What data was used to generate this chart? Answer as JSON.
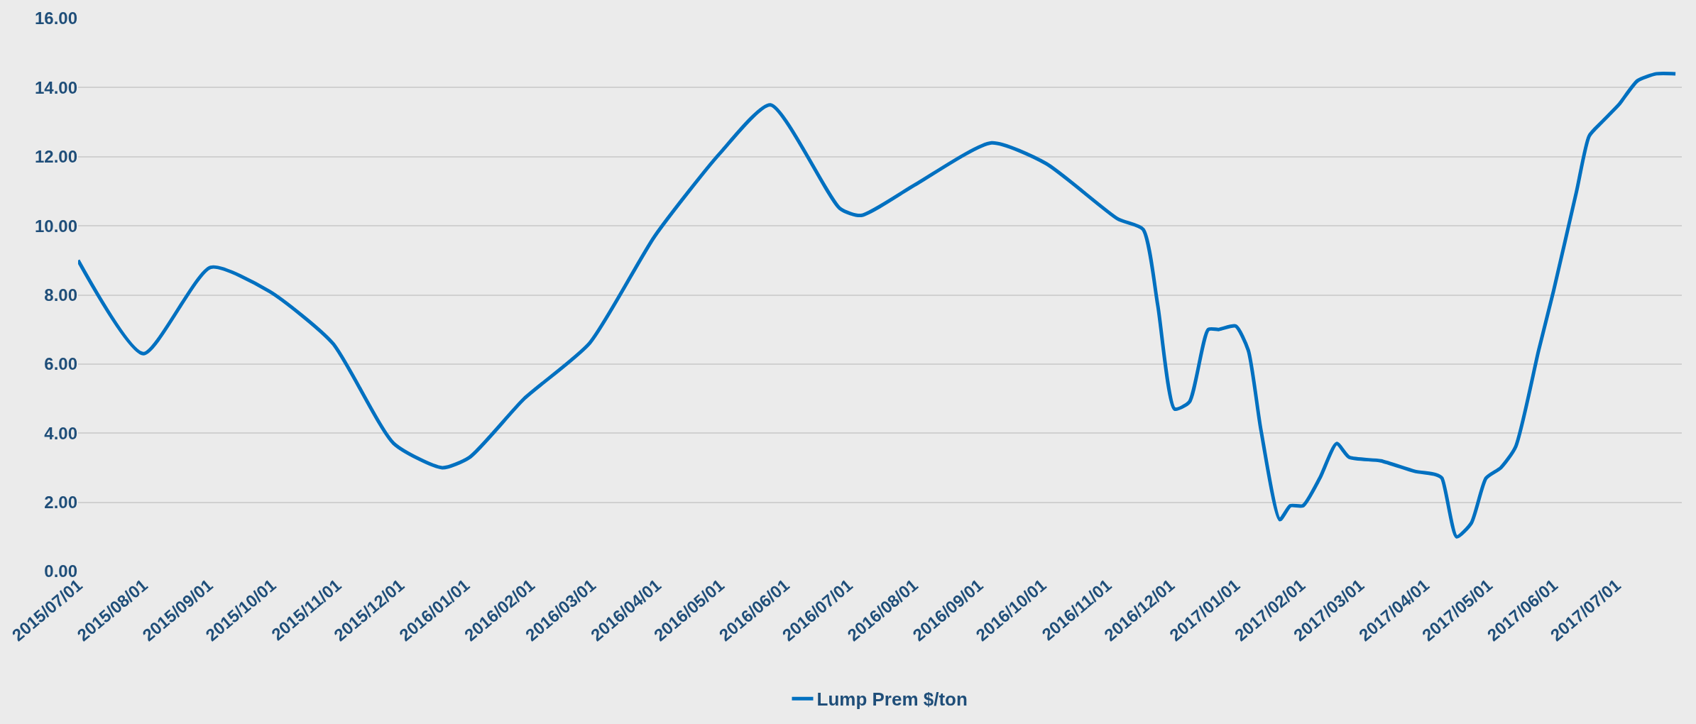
{
  "chart_data": {
    "type": "line",
    "x": [
      "2015-07-01",
      "2015-08-01",
      "2015-09-02",
      "2015-09-30",
      "2015-10-30",
      "2015-11-28",
      "2015-12-21",
      "2016-01-03",
      "2016-01-29",
      "2016-02-29",
      "2016-03-31",
      "2016-05-01",
      "2016-05-25",
      "2016-06-27",
      "2016-07-07",
      "2016-08-02",
      "2016-09-07",
      "2016-10-03",
      "2016-11-06",
      "2016-11-18",
      "2016-11-25",
      "2016-12-03",
      "2016-12-10",
      "2016-12-19",
      "2016-12-24",
      "2017-01-01",
      "2017-01-07",
      "2017-01-13",
      "2017-01-22",
      "2017-01-27",
      "2017-02-02",
      "2017-02-10",
      "2017-02-18",
      "2017-02-24",
      "2017-03-11",
      "2017-03-27",
      "2017-04-06",
      "2017-04-09",
      "2017-04-16",
      "2017-04-23",
      "2017-04-30",
      "2017-05-07",
      "2017-05-14",
      "2017-05-25",
      "2017-06-01",
      "2017-06-12",
      "2017-06-18",
      "2017-06-24",
      "2017-07-02",
      "2017-07-11",
      "2017-07-20",
      "2017-07-29"
    ],
    "series": [
      {
        "name": "Lump Prem $/ton",
        "color": "#0070c0",
        "values": [
          9.0,
          6.3,
          8.8,
          8.1,
          6.6,
          3.7,
          3.0,
          3.3,
          5.0,
          6.6,
          9.7,
          12.1,
          13.5,
          10.5,
          10.3,
          11.2,
          12.4,
          11.8,
          10.2,
          9.9,
          7.7,
          4.7,
          4.9,
          7.0,
          7.0,
          7.1,
          6.4,
          4.1,
          1.5,
          1.9,
          1.9,
          2.7,
          3.7,
          3.3,
          3.2,
          2.9,
          2.8,
          2.7,
          1.0,
          1.4,
          2.7,
          3.0,
          3.6,
          6.4,
          8.1,
          11.0,
          12.6,
          13.0,
          13.5,
          14.2,
          14.4,
          14.4
        ]
      }
    ],
    "xlim": [
      "2015-07-01",
      "2017-08-01"
    ],
    "xticks": [
      {
        "value": "2015-07-01",
        "label": "2015/07/01"
      },
      {
        "value": "2015-08-01",
        "label": "2015/08/01"
      },
      {
        "value": "2015-09-01",
        "label": "2015/09/01"
      },
      {
        "value": "2015-10-01",
        "label": "2015/10/01"
      },
      {
        "value": "2015-11-01",
        "label": "2015/11/01"
      },
      {
        "value": "2015-12-01",
        "label": "2015/12/01"
      },
      {
        "value": "2016-01-01",
        "label": "2016/01/01"
      },
      {
        "value": "2016-02-01",
        "label": "2016/02/01"
      },
      {
        "value": "2016-03-01",
        "label": "2016/03/01"
      },
      {
        "value": "2016-04-01",
        "label": "2016/04/01"
      },
      {
        "value": "2016-05-01",
        "label": "2016/05/01"
      },
      {
        "value": "2016-06-01",
        "label": "2016/06/01"
      },
      {
        "value": "2016-07-01",
        "label": "2016/07/01"
      },
      {
        "value": "2016-08-01",
        "label": "2016/08/01"
      },
      {
        "value": "2016-09-01",
        "label": "2016/09/01"
      },
      {
        "value": "2016-10-01",
        "label": "2016/10/01"
      },
      {
        "value": "2016-11-01",
        "label": "2016/11/01"
      },
      {
        "value": "2016-12-01",
        "label": "2016/12/01"
      },
      {
        "value": "2017-01-01",
        "label": "2017/01/01"
      },
      {
        "value": "2017-02-01",
        "label": "2017/02/01"
      },
      {
        "value": "2017-03-01",
        "label": "2017/03/01"
      },
      {
        "value": "2017-04-01",
        "label": "2017/04/01"
      },
      {
        "value": "2017-05-01",
        "label": "2017/05/01"
      },
      {
        "value": "2017-06-01",
        "label": "2017/06/01"
      },
      {
        "value": "2017-07-01",
        "label": "2017/07/01"
      }
    ],
    "ylim": [
      0,
      16
    ],
    "yticks": [
      {
        "value": 0,
        "label": "0.00"
      },
      {
        "value": 2,
        "label": "2.00"
      },
      {
        "value": 4,
        "label": "4.00"
      },
      {
        "value": 6,
        "label": "6.00"
      },
      {
        "value": 8,
        "label": "8.00"
      },
      {
        "value": 10,
        "label": "10.00"
      },
      {
        "value": 12,
        "label": "12.00"
      },
      {
        "value": 14,
        "label": "14.00"
      },
      {
        "value": 16,
        "label": "16.00"
      }
    ],
    "grid": "y",
    "legend": "bottom",
    "marker": "none",
    "line_style": "solid"
  }
}
